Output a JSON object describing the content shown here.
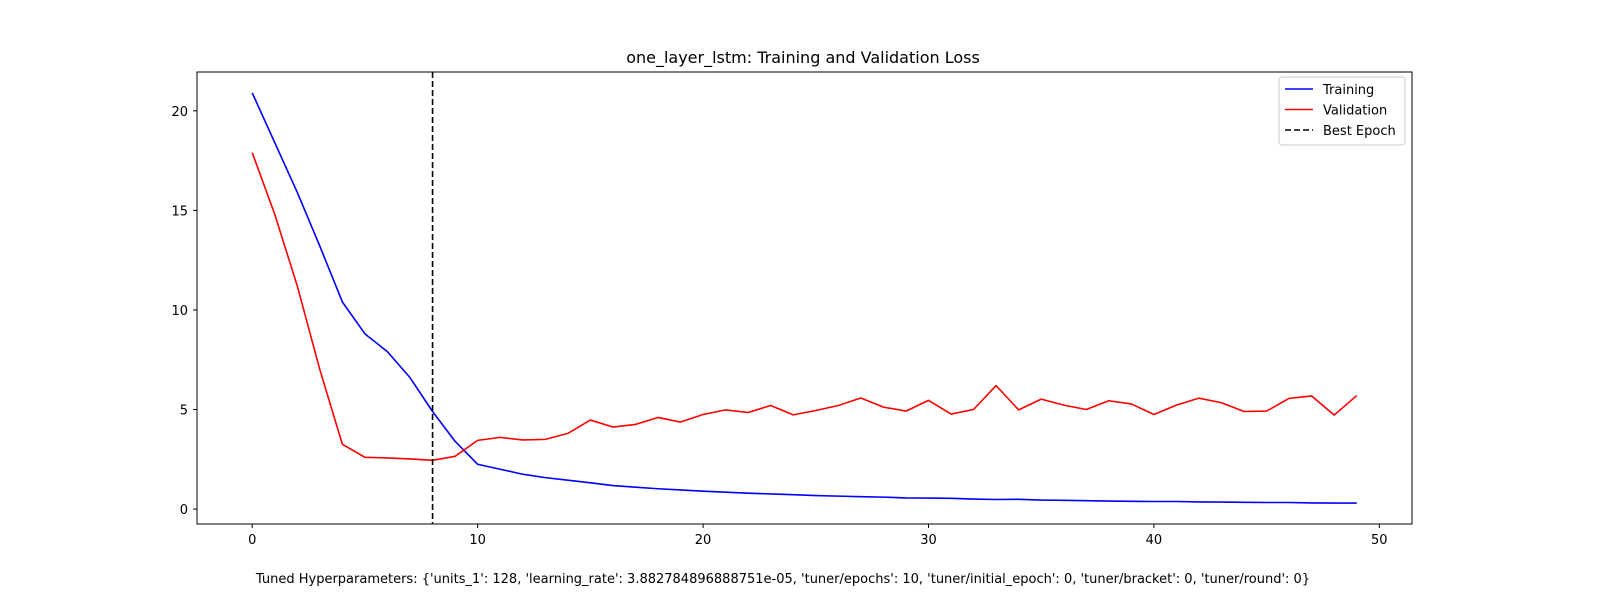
{
  "chart_data": {
    "type": "line",
    "title": "one_layer_lstm: Training and Validation Loss",
    "xlabel": "",
    "ylabel": "",
    "xlim": [
      -2.45,
      51.45
    ],
    "ylim": [
      -0.75,
      21.95
    ],
    "xticks": [
      0,
      10,
      20,
      30,
      40,
      50
    ],
    "yticks": [
      0,
      5,
      10,
      15,
      20
    ],
    "grid": false,
    "legend_position": "top-right",
    "series": [
      {
        "name": "Training",
        "color": "#0000ff",
        "x": [
          0,
          1,
          2,
          3,
          4,
          5,
          6,
          7,
          8,
          9,
          10,
          11,
          12,
          13,
          14,
          15,
          16,
          17,
          18,
          19,
          20,
          21,
          22,
          23,
          24,
          25,
          26,
          27,
          28,
          29,
          30,
          31,
          32,
          33,
          34,
          35,
          36,
          37,
          38,
          39,
          40,
          41,
          42,
          43,
          44,
          45,
          46,
          47,
          48,
          49
        ],
        "values": [
          20.9,
          18.4,
          15.9,
          13.2,
          10.4,
          8.8,
          7.9,
          6.6,
          4.9,
          3.4,
          2.25,
          2.0,
          1.75,
          1.58,
          1.45,
          1.32,
          1.18,
          1.1,
          1.02,
          0.96,
          0.9,
          0.85,
          0.8,
          0.76,
          0.72,
          0.68,
          0.65,
          0.62,
          0.6,
          0.56,
          0.55,
          0.54,
          0.5,
          0.48,
          0.49,
          0.45,
          0.44,
          0.42,
          0.4,
          0.39,
          0.38,
          0.38,
          0.36,
          0.35,
          0.34,
          0.33,
          0.33,
          0.31,
          0.3,
          0.3
        ]
      },
      {
        "name": "Validation",
        "color": "#ff0000",
        "x": [
          0,
          1,
          2,
          3,
          4,
          5,
          6,
          7,
          8,
          9,
          10,
          11,
          12,
          13,
          14,
          15,
          16,
          17,
          18,
          19,
          20,
          21,
          22,
          23,
          24,
          25,
          26,
          27,
          28,
          29,
          30,
          31,
          32,
          33,
          34,
          35,
          36,
          37,
          38,
          39,
          40,
          41,
          42,
          43,
          44,
          45,
          46,
          47,
          48,
          49
        ],
        "values": [
          17.9,
          14.8,
          11.2,
          7.0,
          3.25,
          2.6,
          2.57,
          2.52,
          2.45,
          2.65,
          3.45,
          3.6,
          3.47,
          3.5,
          3.8,
          4.47,
          4.12,
          4.25,
          4.6,
          4.37,
          4.75,
          4.98,
          4.85,
          5.2,
          4.73,
          4.95,
          5.2,
          5.58,
          5.12,
          4.92,
          5.46,
          4.77,
          5.0,
          6.2,
          4.98,
          5.52,
          5.22,
          5.0,
          5.44,
          5.28,
          4.75,
          5.22,
          5.57,
          5.34,
          4.9,
          4.92,
          5.56,
          5.68,
          4.72,
          5.7
        ]
      }
    ],
    "vlines": [
      {
        "name": "Best Epoch",
        "x": 8,
        "color": "#000000",
        "style": "dashed"
      }
    ]
  },
  "footer": {
    "hyperparameters": "Tuned Hyperparameters: {'units_1': 128, 'learning_rate': 3.882784896888751e-05, 'tuner/epochs': 10, 'tuner/initial_epoch': 0, 'tuner/bracket': 0, 'tuner/round': 0}"
  }
}
